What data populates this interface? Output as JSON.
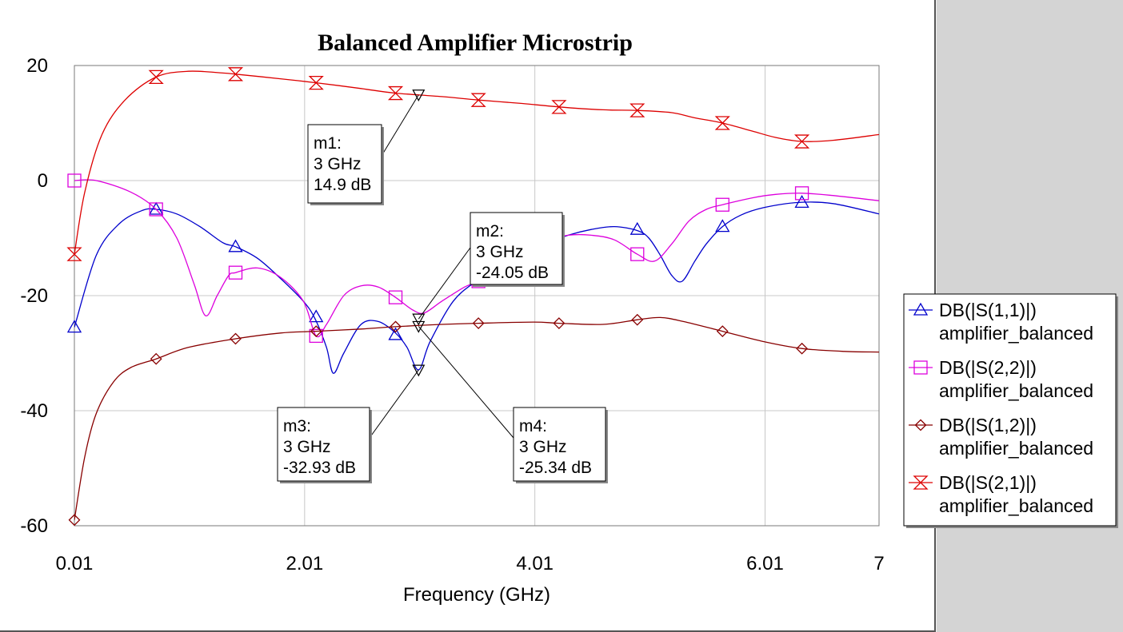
{
  "chart_data": {
    "type": "line",
    "title": "Balanced Amplifier Microstrip",
    "xlabel": "Frequency (GHz)",
    "ylabel": "",
    "xlim": [
      0.01,
      7
    ],
    "ylim": [
      -60,
      20
    ],
    "x_ticks": [
      {
        "value": 0.01,
        "label": "0.01"
      },
      {
        "value": 2.01,
        "label": "2.01"
      },
      {
        "value": 4.01,
        "label": "4.01"
      },
      {
        "value": 6.01,
        "label": "6.01"
      },
      {
        "value": 7,
        "label": "7"
      }
    ],
    "y_ticks": [
      {
        "value": 20,
        "label": "20"
      },
      {
        "value": 0,
        "label": "0"
      },
      {
        "value": -20,
        "label": "-20"
      },
      {
        "value": -40,
        "label": "-40"
      },
      {
        "value": -60,
        "label": "-60"
      }
    ],
    "grid": true,
    "legend_position": "right",
    "series": [
      {
        "name": "DB(|S(1,1)|)",
        "subname": "amplifier_balanced",
        "color": "#0000cc",
        "marker": "triangle",
        "x": [
          0.01,
          0.2,
          0.4,
          0.6,
          0.72,
          0.9,
          1.1,
          1.3,
          1.41,
          1.6,
          1.8,
          2.0,
          2.1,
          2.2,
          2.26,
          2.35,
          2.5,
          2.65,
          2.8,
          2.9,
          3.0,
          3.1,
          3.3,
          3.5,
          3.7,
          3.9,
          4.1,
          4.3,
          4.5,
          4.7,
          4.9,
          5.0,
          5.1,
          5.2,
          5.29,
          5.4,
          5.5,
          5.64,
          5.8,
          6.0,
          6.3,
          6.6,
          7.0
        ],
        "y": [
          -25.5,
          -13,
          -7.5,
          -5.2,
          -5,
          -5.8,
          -8,
          -10.8,
          -11.5,
          -13.5,
          -17,
          -21,
          -24,
          -29,
          -33.5,
          -30,
          -25,
          -24.5,
          -26.5,
          -29,
          -32.9,
          -28,
          -21,
          -17.5,
          -15,
          -13,
          -11,
          -9.5,
          -8.5,
          -8,
          -8.7,
          -10,
          -13,
          -16.5,
          -17.5,
          -14,
          -11,
          -8,
          -6,
          -4.7,
          -3.8,
          -4,
          -5.8
        ],
        "marker_x": [
          0.01,
          0.72,
          1.41,
          2.11,
          2.8,
          4.9,
          5.64,
          6.33
        ],
        "marker_y": [
          -25.5,
          -5,
          -11.5,
          -23.7,
          -26.8,
          -8.5,
          -8,
          -3.8
        ]
      },
      {
        "name": "DB(|S(2,2)|)",
        "subname": "amplifier_balanced",
        "color": "#dd00dd",
        "marker": "square",
        "x": [
          0.01,
          0.2,
          0.5,
          0.72,
          0.9,
          1.05,
          1.15,
          1.25,
          1.35,
          1.41,
          1.6,
          1.8,
          2.0,
          2.11,
          2.2,
          2.35,
          2.5,
          2.65,
          2.8,
          2.95,
          3.05,
          3.2,
          3.4,
          3.52,
          3.7,
          3.9,
          4.1,
          4.3,
          4.5,
          4.7,
          4.9,
          5.05,
          5.2,
          5.35,
          5.5,
          5.64,
          5.9,
          6.1,
          6.33,
          6.6,
          7.0
        ],
        "y": [
          0,
          0,
          -2,
          -5,
          -10,
          -18,
          -23.5,
          -20,
          -16.5,
          -16,
          -15.2,
          -16.8,
          -21,
          -27,
          -25,
          -20,
          -18.3,
          -18.5,
          -20.3,
          -22.5,
          -23,
          -21,
          -18.5,
          -17.5,
          -15,
          -12.5,
          -10.5,
          -9.5,
          -9.5,
          -10.3,
          -12.8,
          -14,
          -11,
          -7,
          -5,
          -4.2,
          -3,
          -2.4,
          -2.2,
          -2.6,
          -3.5
        ],
        "marker_x": [
          0.01,
          0.72,
          1.41,
          2.11,
          2.8,
          3.52,
          4.9,
          5.64,
          6.33
        ],
        "marker_y": [
          0,
          -5,
          -16,
          -27,
          -20.3,
          -17.5,
          -12.8,
          -4.2,
          -2.2
        ]
      },
      {
        "name": "DB(|S(1,2)|)",
        "subname": "amplifier_balanced",
        "color": "#880000",
        "marker": "diamond",
        "x": [
          0.01,
          0.1,
          0.2,
          0.35,
          0.5,
          0.72,
          1.0,
          1.41,
          1.8,
          2.11,
          2.5,
          2.8,
          3.2,
          3.52,
          4.0,
          4.22,
          4.6,
          4.9,
          5.1,
          5.3,
          5.64,
          6.0,
          6.33,
          6.7,
          7.0
        ],
        "y": [
          -59,
          -48,
          -40.5,
          -35,
          -32.5,
          -31,
          -29,
          -27.5,
          -26.5,
          -26.2,
          -25.8,
          -25.4,
          -25,
          -24.8,
          -24.6,
          -24.8,
          -25,
          -24.2,
          -23.8,
          -24.5,
          -26.2,
          -28,
          -29.2,
          -29.7,
          -29.8
        ],
        "marker_x": [
          0.01,
          0.72,
          1.41,
          2.11,
          2.8,
          3.52,
          4.22,
          4.9,
          5.64,
          6.33
        ],
        "marker_y": [
          -59,
          -31,
          -27.5,
          -26.2,
          -25.4,
          -24.8,
          -24.8,
          -24.2,
          -26.2,
          -29.2
        ]
      },
      {
        "name": "DB(|S(2,1)|)",
        "subname": "amplifier_balanced",
        "color": "#dd0000",
        "marker": "hourglass",
        "x": [
          0.01,
          0.1,
          0.25,
          0.45,
          0.72,
          1.0,
          1.3,
          1.41,
          1.8,
          2.11,
          2.5,
          2.8,
          3.2,
          3.52,
          3.9,
          4.22,
          4.6,
          4.9,
          5.2,
          5.4,
          5.64,
          5.9,
          6.1,
          6.33,
          6.6,
          7.0
        ],
        "y": [
          -12.8,
          -2,
          8,
          14,
          18,
          19,
          18.7,
          18.5,
          17.7,
          17,
          16,
          15.2,
          14.6,
          14,
          13.4,
          12.8,
          12.3,
          12.2,
          11.8,
          10.9,
          10,
          8.6,
          7.5,
          6.8,
          7,
          8
        ],
        "marker_x": [
          0.01,
          0.72,
          1.41,
          2.11,
          2.8,
          3.52,
          4.22,
          4.9,
          5.64,
          6.33
        ],
        "marker_y": [
          -12.8,
          18,
          18.5,
          17,
          15.2,
          14,
          12.8,
          12.2,
          10,
          6.8
        ]
      }
    ],
    "markers": [
      {
        "id": "m1",
        "lines": [
          "m1:",
          "3 GHz",
          "14.9 dB"
        ],
        "x": 3,
        "y": 14.9
      },
      {
        "id": "m2",
        "lines": [
          "m2:",
          "3 GHz",
          "-24.05 dB"
        ],
        "x": 3,
        "y": -24.05
      },
      {
        "id": "m3",
        "lines": [
          "m3:",
          "3 GHz",
          "-32.93 dB"
        ],
        "x": 3,
        "y": -32.93
      },
      {
        "id": "m4",
        "lines": [
          "m4:",
          "3 GHz",
          "-25.34 dB"
        ],
        "x": 3,
        "y": -25.34
      }
    ]
  }
}
